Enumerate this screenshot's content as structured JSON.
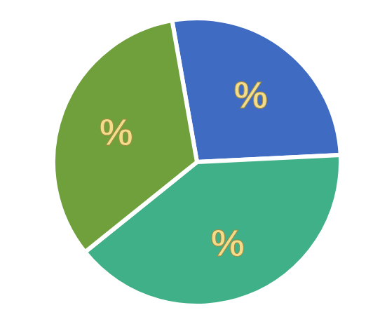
{
  "chart_data": {
    "type": "pie",
    "values": [
      27,
      40,
      33
    ],
    "value_labels": [
      "%",
      "%",
      "%"
    ],
    "colors": [
      "#3f6cc2",
      "#3fb087",
      "#6fa03c"
    ],
    "data_labels": true
  }
}
